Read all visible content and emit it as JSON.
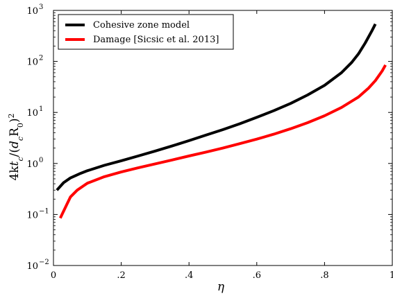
{
  "chart_data": {
    "type": "line",
    "xlabel": "η",
    "ylabel": "4kt_c/(d_cR_0)^2",
    "ylabel_parts": {
      "a": "4k",
      "b": "t",
      "c": "c",
      "d": "/(",
      "e": "d",
      "f": "c",
      "g": "R",
      "h": "0",
      "i": ")",
      "j": "2"
    },
    "xlim": [
      0,
      1
    ],
    "ylim": [
      0.01,
      1000
    ],
    "yscale": "log",
    "grid": false,
    "legend_position": "top-left",
    "x_ticks": [
      0,
      0.2,
      0.4,
      0.6,
      0.8,
      1
    ],
    "x_tick_labels": [
      "0",
      ".2",
      ".4",
      ".6",
      ".8",
      "1"
    ],
    "y_ticks": [
      0.01,
      0.1,
      1,
      10,
      100,
      1000
    ],
    "y_tick_labels": [
      {
        "base": "10",
        "exp": "−2"
      },
      {
        "base": "10",
        "exp": "−1"
      },
      {
        "base": "10",
        "exp": "0"
      },
      {
        "base": "10",
        "exp": "1"
      },
      {
        "base": "10",
        "exp": "2"
      },
      {
        "base": "10",
        "exp": "3"
      }
    ],
    "series": [
      {
        "name": "Cohesive zone model",
        "color": "#000000",
        "x": [
          0.01,
          0.03,
          0.05,
          0.08,
          0.1,
          0.15,
          0.2,
          0.25,
          0.3,
          0.35,
          0.4,
          0.45,
          0.5,
          0.55,
          0.6,
          0.65,
          0.7,
          0.75,
          0.8,
          0.85,
          0.88,
          0.9,
          0.92,
          0.94,
          0.95
        ],
        "y": [
          0.3,
          0.42,
          0.52,
          0.64,
          0.72,
          0.92,
          1.13,
          1.4,
          1.75,
          2.2,
          2.8,
          3.6,
          4.6,
          6.0,
          8.0,
          10.8,
          15.0,
          22.0,
          34.0,
          60.0,
          95.0,
          140.0,
          230.0,
          400.0,
          540.0
        ]
      },
      {
        "name": "Damage [Sicsic et al. 2013]",
        "color": "#ff0000",
        "x": [
          0.02,
          0.04,
          0.05,
          0.07,
          0.09,
          0.1,
          0.15,
          0.2,
          0.25,
          0.3,
          0.35,
          0.4,
          0.45,
          0.5,
          0.55,
          0.6,
          0.65,
          0.7,
          0.75,
          0.8,
          0.85,
          0.9,
          0.93,
          0.95,
          0.97,
          0.98
        ],
        "y": [
          0.085,
          0.16,
          0.22,
          0.3,
          0.37,
          0.41,
          0.55,
          0.68,
          0.82,
          0.98,
          1.17,
          1.4,
          1.67,
          2.0,
          2.45,
          3.0,
          3.75,
          4.8,
          6.3,
          8.6,
          12.5,
          20.0,
          30.0,
          42.0,
          65.0,
          85.0
        ]
      }
    ]
  }
}
